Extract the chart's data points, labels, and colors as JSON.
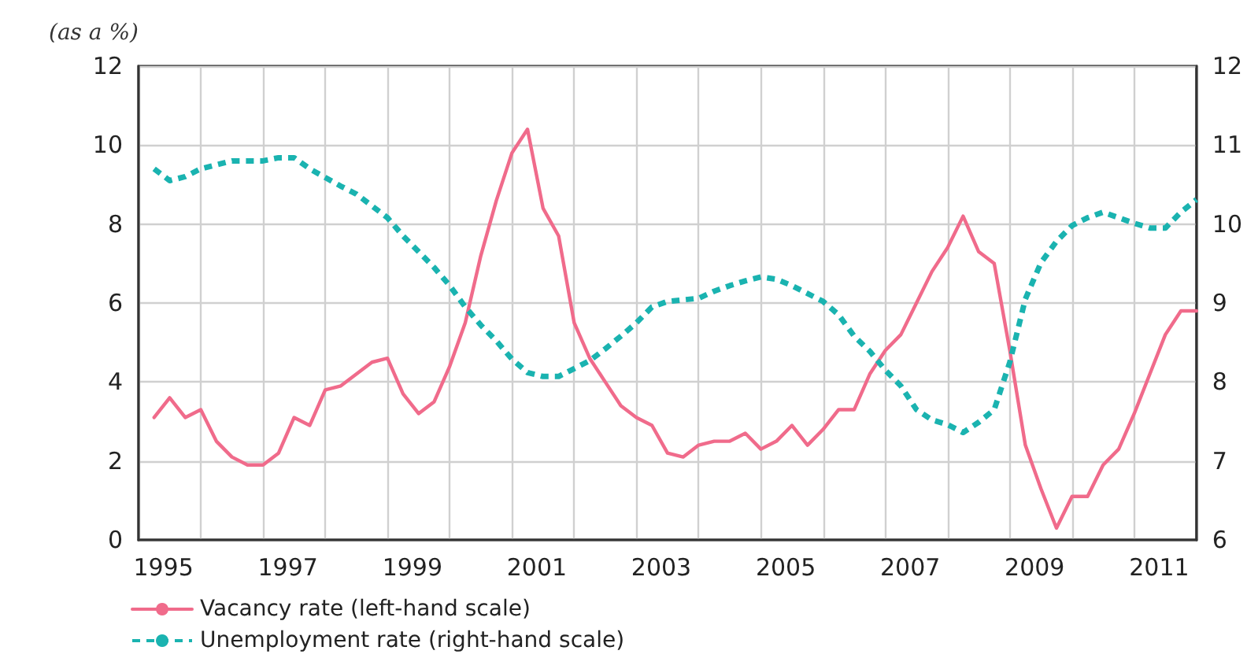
{
  "chart_data": {
    "type": "line",
    "ylabel": "(as a %)",
    "x": [
      1995.25,
      1995.5,
      1995.75,
      1996,
      1996.25,
      1996.5,
      1996.75,
      1997,
      1997.25,
      1997.5,
      1997.75,
      1998,
      1998.25,
      1998.5,
      1998.75,
      1999,
      1999.25,
      1999.5,
      1999.75,
      2000,
      2000.25,
      2000.5,
      2000.75,
      2001,
      2001.25,
      2001.5,
      2001.75,
      2002,
      2002.25,
      2002.5,
      2002.75,
      2003,
      2003.25,
      2003.5,
      2003.75,
      2004,
      2004.25,
      2004.5,
      2004.75,
      2005,
      2005.25,
      2005.5,
      2005.75,
      2006,
      2006.25,
      2006.5,
      2006.75,
      2007,
      2007.25,
      2007.5,
      2007.75,
      2008,
      2008.25,
      2008.5,
      2008.75,
      2009,
      2009.25,
      2009.5,
      2009.75,
      2010,
      2010.25,
      2010.5,
      2010.75,
      2011,
      2011.25,
      2011.5,
      2011.75,
      2012
    ],
    "series": [
      {
        "name": "Vacancy rate (left-hand scale)",
        "color": "#f06b8b",
        "line_style": "solid",
        "values": [
          3.1,
          3.6,
          3.1,
          3.3,
          2.5,
          2.1,
          1.9,
          1.9,
          2.2,
          3.1,
          2.9,
          3.8,
          3.9,
          4.2,
          4.5,
          4.6,
          3.7,
          3.2,
          3.5,
          4.4,
          5.5,
          7.2,
          8.6,
          9.8,
          10.4,
          8.4,
          7.7,
          5.5,
          4.6,
          4.0,
          3.4,
          3.1,
          2.9,
          2.2,
          2.1,
          2.4,
          2.5,
          2.5,
          2.7,
          2.3,
          2.5,
          2.9,
          2.4,
          2.8,
          3.3,
          3.3,
          4.2,
          4.8,
          5.2,
          6.0,
          6.8,
          7.4,
          8.2,
          7.3,
          7.0,
          4.8,
          2.4,
          1.3,
          0.3,
          1.1,
          1.1,
          1.9,
          2.3,
          3.2,
          4.2,
          5.2,
          5.8,
          5.8
        ]
      },
      {
        "name": "Unemployment rate (right-hand scale)",
        "color": "#1ab3b0",
        "line_style": "dashed",
        "axis": "y2",
        "values": [
          10.7,
          10.55,
          10.6,
          10.7,
          10.75,
          10.8,
          10.8,
          10.8,
          10.84,
          10.84,
          10.7,
          10.59,
          10.48,
          10.38,
          10.23,
          10.08,
          9.85,
          9.65,
          9.45,
          9.22,
          8.95,
          8.72,
          8.52,
          8.29,
          8.12,
          8.07,
          8.07,
          8.17,
          8.27,
          8.42,
          8.58,
          8.75,
          8.95,
          9.02,
          9.04,
          9.06,
          9.15,
          9.22,
          9.28,
          9.33,
          9.3,
          9.22,
          9.12,
          9.02,
          8.85,
          8.58,
          8.39,
          8.15,
          7.95,
          7.65,
          7.52,
          7.46,
          7.36,
          7.49,
          7.65,
          8.25,
          9.05,
          9.51,
          9.78,
          9.98,
          10.08,
          10.15,
          10.08,
          10.01,
          9.95,
          9.95,
          10.15,
          10.31
        ]
      }
    ],
    "xlim": [
      1995,
      2012
    ],
    "xticks": [
      {
        "value": 1995,
        "label": null
      },
      {
        "value": 1996,
        "label": null
      },
      {
        "value": 1997,
        "label": null
      },
      {
        "value": 1998,
        "label": null
      },
      {
        "value": 1999,
        "label": null
      },
      {
        "value": 2000,
        "label": null
      },
      {
        "value": 2001,
        "label": null
      },
      {
        "value": 2002,
        "label": null
      },
      {
        "value": 2003,
        "label": null
      },
      {
        "value": 2004,
        "label": null
      },
      {
        "value": 2005,
        "label": null
      },
      {
        "value": 2006,
        "label": null
      },
      {
        "value": 2007,
        "label": null
      },
      {
        "value": 2008,
        "label": null
      },
      {
        "value": 2009,
        "label": null
      },
      {
        "value": 2010,
        "label": null
      },
      {
        "value": 2011,
        "label": null
      },
      {
        "value": 2012,
        "label": null
      },
      {
        "value": 1995.4,
        "label": "1995"
      },
      {
        "value": 1997.4,
        "label": "1997"
      },
      {
        "value": 1999.4,
        "label": "1999"
      },
      {
        "value": 2001.4,
        "label": "2001"
      },
      {
        "value": 2003.4,
        "label": "2003"
      },
      {
        "value": 2005.4,
        "label": "2005"
      },
      {
        "value": 2007.4,
        "label": "2007"
      },
      {
        "value": 2009.4,
        "label": "2009"
      },
      {
        "value": 2011.4,
        "label": "2011"
      }
    ],
    "ylim": [
      0,
      12
    ],
    "yticks": [
      0,
      2,
      4,
      6,
      8,
      10,
      12
    ],
    "y2lim": [
      6,
      12
    ],
    "y2ticks": [
      6,
      7,
      8,
      9,
      10,
      11,
      12
    ],
    "grid": true,
    "legend": "bottom left",
    "marker": "none"
  }
}
